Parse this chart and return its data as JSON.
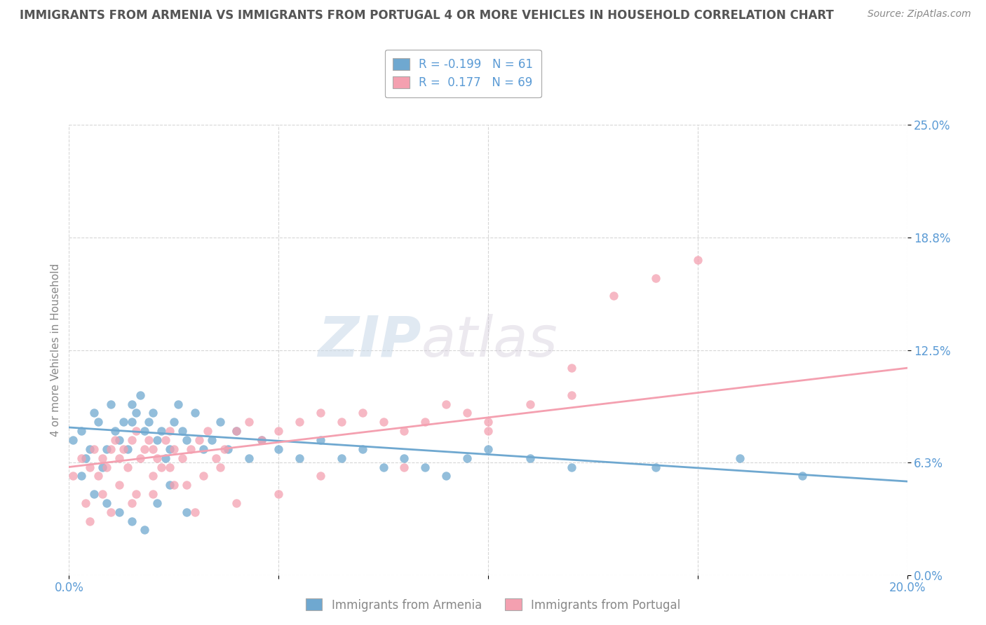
{
  "title": "IMMIGRANTS FROM ARMENIA VS IMMIGRANTS FROM PORTUGAL 4 OR MORE VEHICLES IN HOUSEHOLD CORRELATION CHART",
  "source": "Source: ZipAtlas.com",
  "ylabel": "4 or more Vehicles in Household",
  "xlim": [
    0.0,
    0.2
  ],
  "ylim": [
    0.0,
    0.25
  ],
  "xticks": [
    0.0,
    0.05,
    0.1,
    0.15,
    0.2
  ],
  "xtick_labels": [
    "0.0%",
    "",
    "",
    "",
    "20.0%"
  ],
  "ytick_labels_right": [
    "0.0%",
    "6.3%",
    "12.5%",
    "18.8%",
    "25.0%"
  ],
  "yticks": [
    0.0,
    0.0625,
    0.125,
    0.1875,
    0.25
  ],
  "armenia_color": "#6fa8d0",
  "portugal_color": "#f4a0b0",
  "armenia_R": -0.199,
  "armenia_N": 61,
  "portugal_R": 0.177,
  "portugal_N": 69,
  "legend_label_armenia": "Immigrants from Armenia",
  "legend_label_portugal": "Immigrants from Portugal",
  "watermark_zip": "ZIP",
  "watermark_atlas": "atlas",
  "background_color": "#ffffff",
  "grid_color": "#cccccc",
  "title_color": "#555555",
  "axis_label_color": "#5b9bd5",
  "arm_line_x0": 0.0,
  "arm_line_y0": 0.082,
  "arm_line_x1": 0.2,
  "arm_line_y1": 0.052,
  "port_line_x0": 0.0,
  "port_line_y0": 0.06,
  "port_line_x1": 0.2,
  "port_line_y1": 0.115,
  "armenia_scatter_x": [
    0.001,
    0.003,
    0.004,
    0.005,
    0.006,
    0.007,
    0.008,
    0.009,
    0.01,
    0.011,
    0.012,
    0.013,
    0.014,
    0.015,
    0.015,
    0.016,
    0.017,
    0.018,
    0.019,
    0.02,
    0.021,
    0.022,
    0.023,
    0.024,
    0.025,
    0.026,
    0.027,
    0.028,
    0.03,
    0.032,
    0.034,
    0.036,
    0.038,
    0.04,
    0.043,
    0.046,
    0.05,
    0.055,
    0.06,
    0.065,
    0.07,
    0.075,
    0.08,
    0.085,
    0.09,
    0.095,
    0.1,
    0.11,
    0.12,
    0.14,
    0.16,
    0.175,
    0.003,
    0.006,
    0.009,
    0.012,
    0.015,
    0.018,
    0.021,
    0.024,
    0.028
  ],
  "armenia_scatter_y": [
    0.075,
    0.08,
    0.065,
    0.07,
    0.09,
    0.085,
    0.06,
    0.07,
    0.095,
    0.08,
    0.075,
    0.085,
    0.07,
    0.095,
    0.085,
    0.09,
    0.1,
    0.08,
    0.085,
    0.09,
    0.075,
    0.08,
    0.065,
    0.07,
    0.085,
    0.095,
    0.08,
    0.075,
    0.09,
    0.07,
    0.075,
    0.085,
    0.07,
    0.08,
    0.065,
    0.075,
    0.07,
    0.065,
    0.075,
    0.065,
    0.07,
    0.06,
    0.065,
    0.06,
    0.055,
    0.065,
    0.07,
    0.065,
    0.06,
    0.06,
    0.065,
    0.055,
    0.055,
    0.045,
    0.04,
    0.035,
    0.03,
    0.025,
    0.04,
    0.05,
    0.035
  ],
  "portugal_scatter_x": [
    0.001,
    0.003,
    0.005,
    0.006,
    0.007,
    0.008,
    0.009,
    0.01,
    0.011,
    0.012,
    0.013,
    0.014,
    0.015,
    0.016,
    0.017,
    0.018,
    0.019,
    0.02,
    0.021,
    0.022,
    0.023,
    0.024,
    0.025,
    0.027,
    0.029,
    0.031,
    0.033,
    0.035,
    0.037,
    0.04,
    0.043,
    0.046,
    0.05,
    0.055,
    0.06,
    0.065,
    0.07,
    0.075,
    0.08,
    0.085,
    0.09,
    0.095,
    0.1,
    0.11,
    0.12,
    0.13,
    0.14,
    0.15,
    0.004,
    0.008,
    0.012,
    0.016,
    0.02,
    0.024,
    0.028,
    0.032,
    0.036,
    0.005,
    0.01,
    0.015,
    0.02,
    0.025,
    0.03,
    0.04,
    0.05,
    0.06,
    0.08,
    0.1,
    0.12
  ],
  "portugal_scatter_y": [
    0.055,
    0.065,
    0.06,
    0.07,
    0.055,
    0.065,
    0.06,
    0.07,
    0.075,
    0.065,
    0.07,
    0.06,
    0.075,
    0.08,
    0.065,
    0.07,
    0.075,
    0.07,
    0.065,
    0.06,
    0.075,
    0.08,
    0.07,
    0.065,
    0.07,
    0.075,
    0.08,
    0.065,
    0.07,
    0.08,
    0.085,
    0.075,
    0.08,
    0.085,
    0.09,
    0.085,
    0.09,
    0.085,
    0.08,
    0.085,
    0.095,
    0.09,
    0.085,
    0.095,
    0.1,
    0.155,
    0.165,
    0.175,
    0.04,
    0.045,
    0.05,
    0.045,
    0.055,
    0.06,
    0.05,
    0.055,
    0.06,
    0.03,
    0.035,
    0.04,
    0.045,
    0.05,
    0.035,
    0.04,
    0.045,
    0.055,
    0.06,
    0.08,
    0.115
  ]
}
